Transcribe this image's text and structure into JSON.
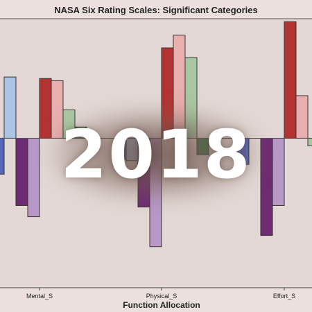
{
  "chart_data": {
    "type": "bar",
    "title": "NASA Six Rating Scales: Significant Categories",
    "xlabel": "Function Allocation",
    "ylabel": "",
    "categories": [
      "Mental_S",
      "Physical_S",
      "Effort_S"
    ],
    "ylim": [
      -2.0,
      1.6
    ],
    "grid": false,
    "legend": "none",
    "series": [
      {
        "color": "#5566bb",
        "values": [
          -0.48,
          -0.28,
          -0.35
        ]
      },
      {
        "color": "#aac4e2",
        "values": [
          0.82,
          -0.3,
          0.0
        ]
      },
      {
        "color": "#6d2c71",
        "values": [
          -0.9,
          -0.92,
          -1.3
        ]
      },
      {
        "color": "#b898c6",
        "values": [
          -1.05,
          -1.45,
          -0.9
        ]
      },
      {
        "color": "#b33333",
        "values": [
          0.8,
          1.21,
          1.56
        ]
      },
      {
        "color": "#e8afae",
        "values": [
          0.77,
          1.38,
          0.57
        ]
      },
      {
        "color": "#a9c8a2",
        "values": [
          0.38,
          1.08,
          -0.1
        ]
      },
      {
        "color": "#3b7a4a",
        "values": [
          0.15,
          -0.22,
          -0.25
        ]
      }
    ]
  },
  "overlay": {
    "text": "2018"
  }
}
